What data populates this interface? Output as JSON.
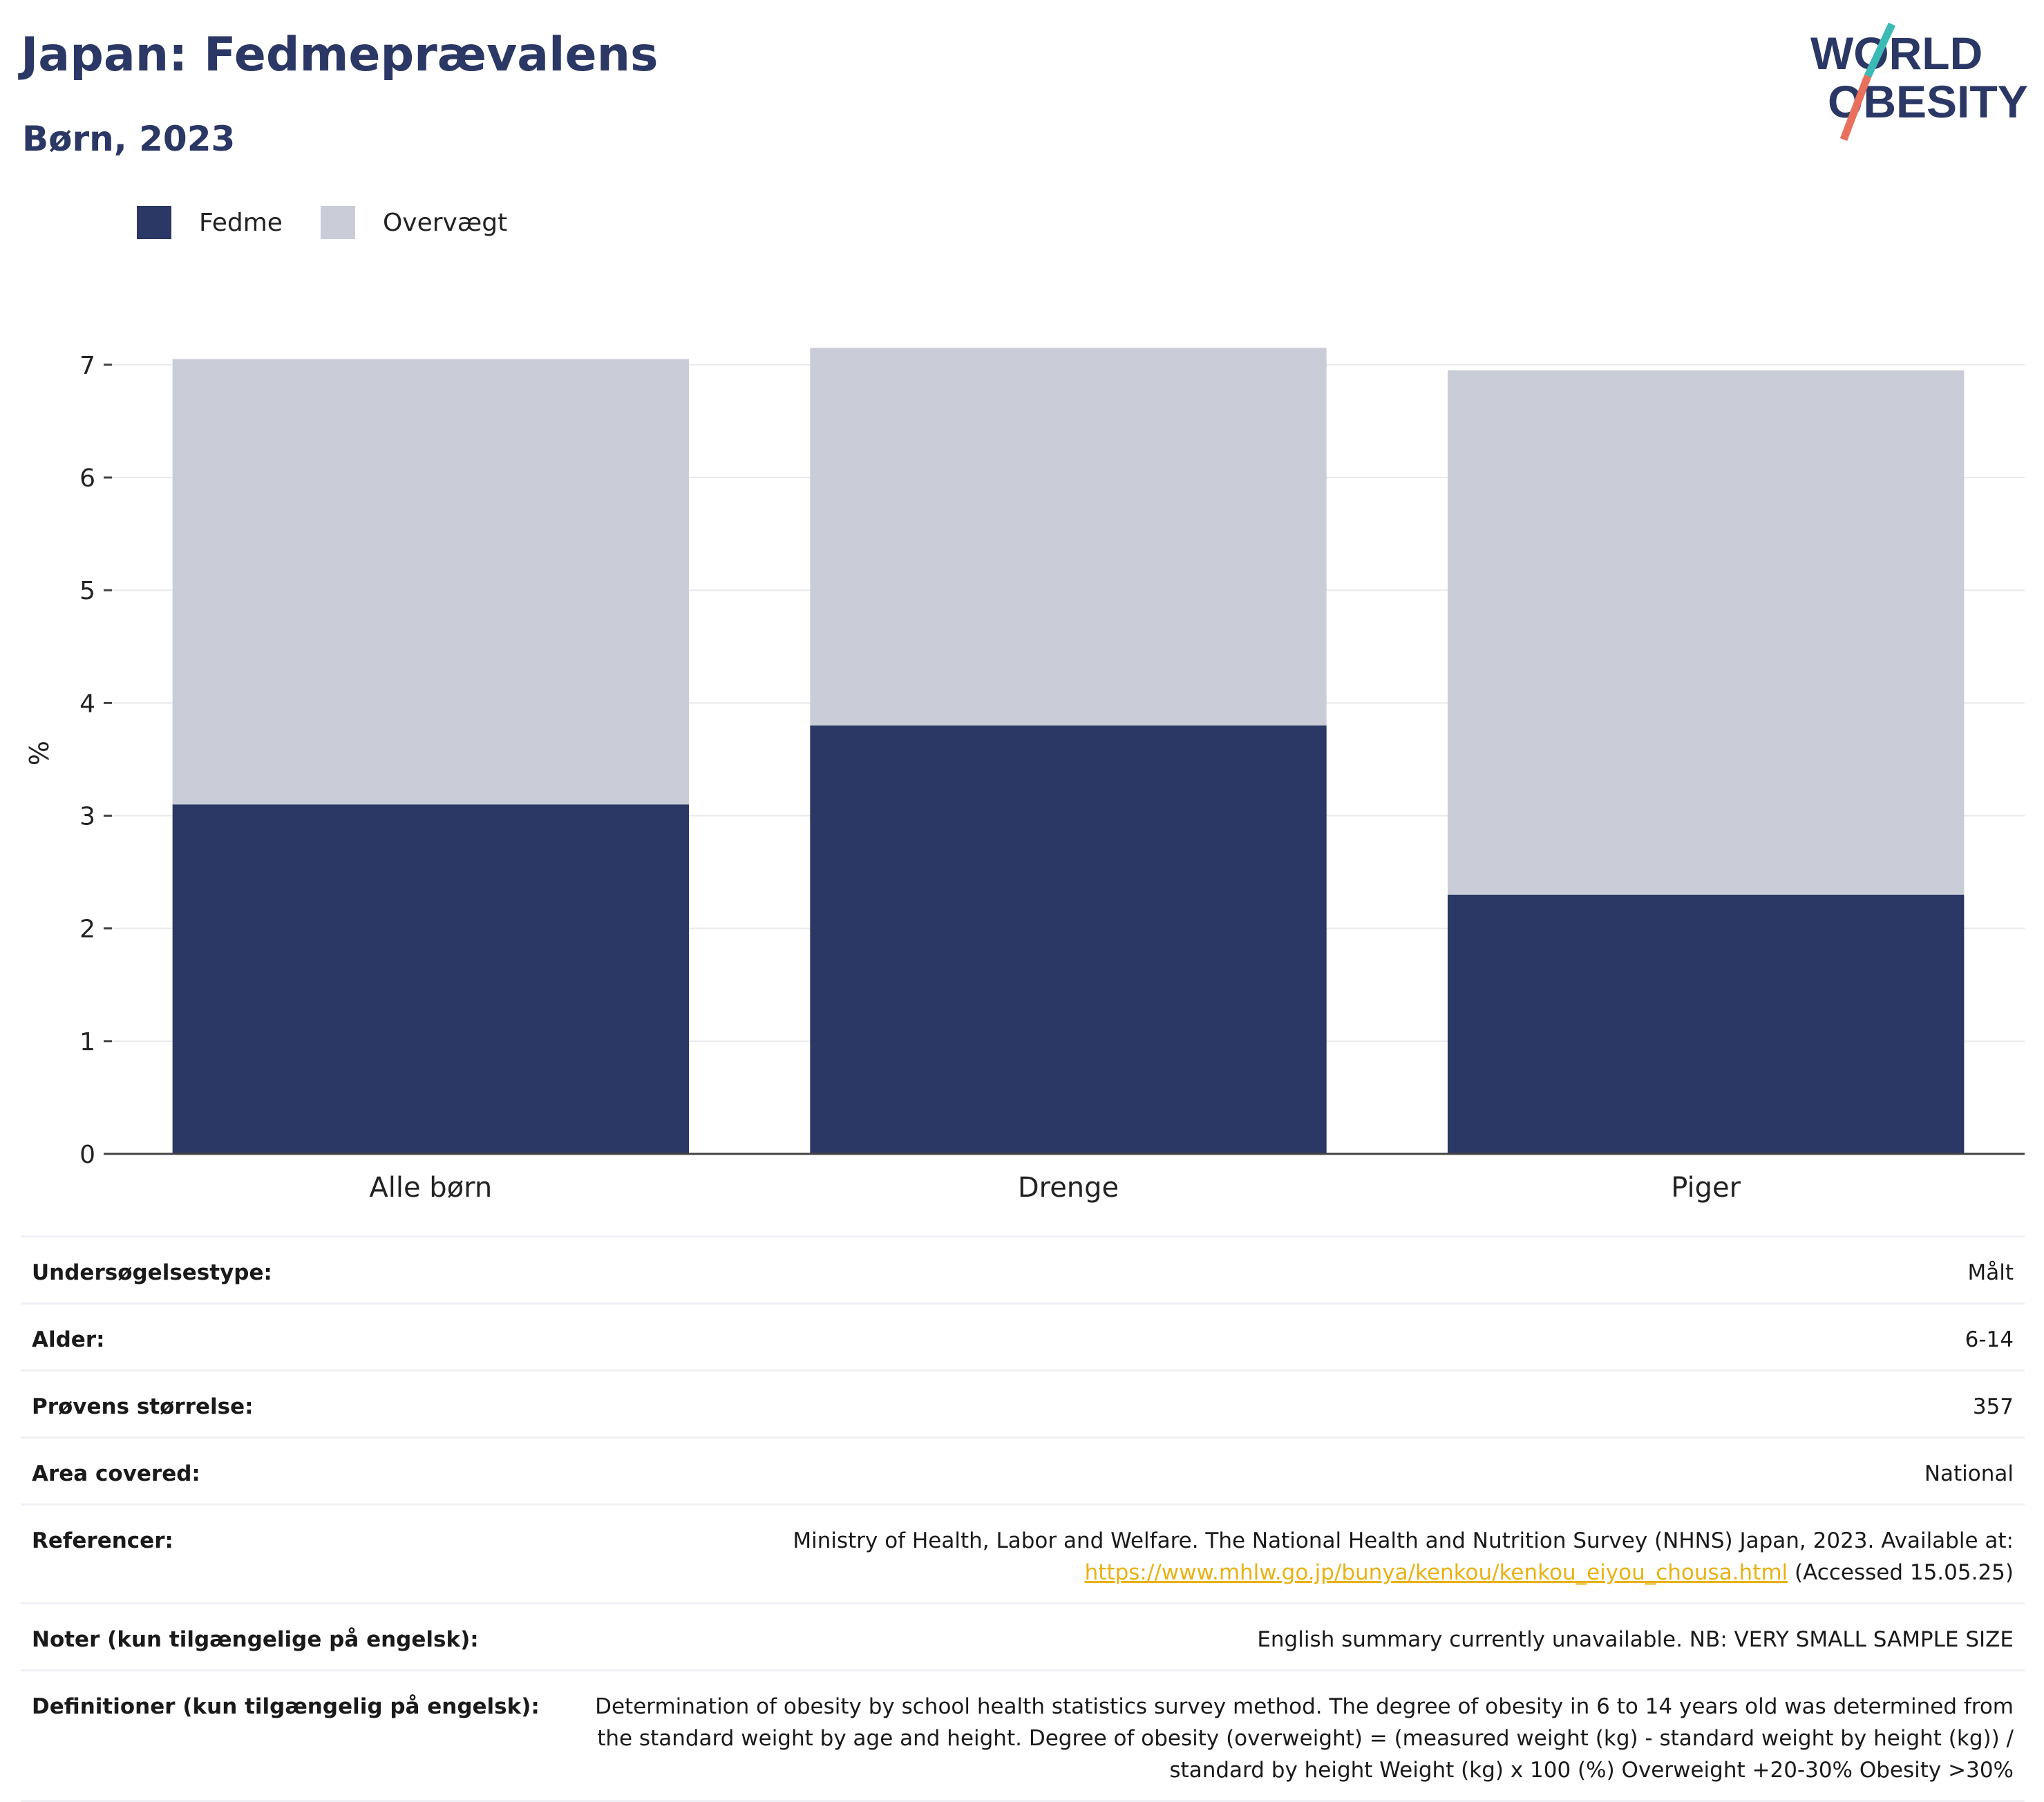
{
  "header": {
    "title": "Japan: Fedmeprævalens",
    "subtitle": "Børn, 2023"
  },
  "logo": {
    "line1": "WORLD",
    "line2": "OBESITY"
  },
  "colors": {
    "fedme": "#2b3764",
    "overvaegt": "#cacdd8",
    "accent_teal": "#3bbab6",
    "accent_red": "#e8705c",
    "link": "#e8b215"
  },
  "chart_data": {
    "type": "bar",
    "stacked": true,
    "categories": [
      "Alle børn",
      "Drenge",
      "Piger"
    ],
    "series": [
      {
        "name": "Fedme",
        "values": [
          3.1,
          3.8,
          2.3
        ]
      },
      {
        "name": "Overvægt",
        "values": [
          3.95,
          3.35,
          4.65
        ]
      }
    ],
    "ylabel": "%",
    "ylim": [
      0,
      7.6
    ],
    "yticks": [
      0,
      1,
      2,
      3,
      4,
      5,
      6,
      7
    ],
    "grid": true,
    "legend_position": "top-left"
  },
  "info": {
    "rows": [
      {
        "key": "Undersøgelsestype:",
        "value": "Målt"
      },
      {
        "key": "Alder:",
        "value": "6-14"
      },
      {
        "key": "Prøvens størrelse:",
        "value": "357"
      },
      {
        "key": "Area covered:",
        "value": "National"
      },
      {
        "key": "Referencer:",
        "value": "Ministry of Health, Labor and Welfare. The National Health and Nutrition Survey (NHNS) Japan, 2023. Available at:",
        "link": "https://www.mhlw.go.jp/bunya/kenkou/kenkou_eiyou_chousa.html",
        "suffix": " (Accessed 15.05.25)"
      },
      {
        "key": "Noter (kun tilgængelige på engelsk):",
        "value": "English summary currently unavailable. NB: VERY SMALL SAMPLE SIZE"
      },
      {
        "key": "Definitioner (kun tilgængelig på engelsk):",
        "value": "Determination of obesity by school health statistics survey method. The degree of obesity in 6 to 14 years old was determined from the standard weight by age and height. Degree of obesity (overweight) = (measured weight (kg) - standard weight by height (kg)) / standard by height Weight (kg) x 100 (%) Overweight +20-30% Obesity >30%"
      }
    ]
  }
}
